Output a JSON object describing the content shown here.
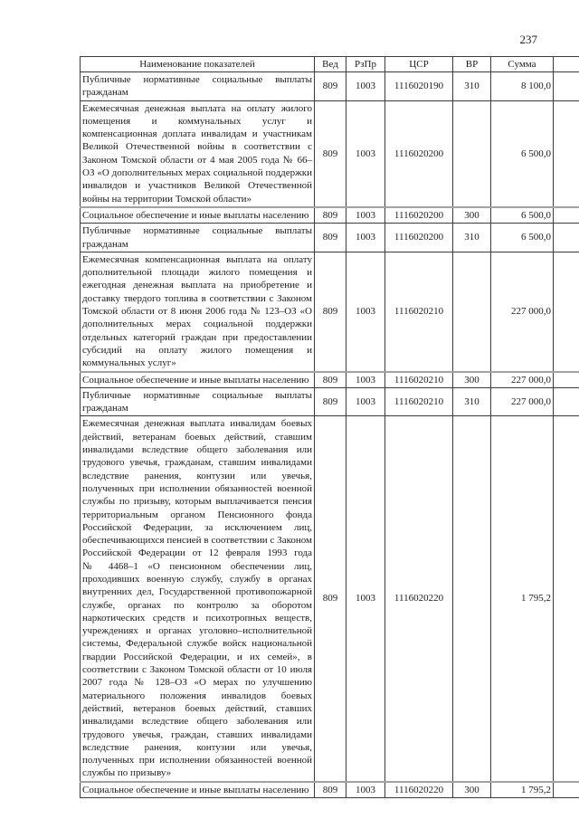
{
  "page_number": "237",
  "table": {
    "headers": [
      "Наименование показателей",
      "Вед",
      "РзПр",
      "ЦСР",
      "ВР",
      "Сумма"
    ],
    "rows": [
      {
        "name": "Публичные нормативные социальные выплаты гражданам",
        "ved": "809",
        "rzpr": "1003",
        "csr": "1116020190",
        "vr": "310",
        "summa": "8 100,0"
      },
      {
        "name": "Ежемесячная денежная выплата на оплату жилого помещения и коммунальных услуг и компенсационная доплата инвалидам и участникам Великой Отечественной войны в соответствии с Законом Томской области от 4 мая 2005 года № 66–ОЗ «О дополнительных мерах социальной поддержки инвалидов и участников Великой Отечественной войны на территории Томской области»",
        "ved": "809",
        "rzpr": "1003",
        "csr": "1116020200",
        "vr": "",
        "summa": "6 500,0"
      },
      {
        "name": "Социальное обеспечение и иные выплаты населению",
        "ved": "809",
        "rzpr": "1003",
        "csr": "1116020200",
        "vr": "300",
        "summa": "6 500,0"
      },
      {
        "name": "Публичные нормативные социальные выплаты гражданам",
        "ved": "809",
        "rzpr": "1003",
        "csr": "1116020200",
        "vr": "310",
        "summa": "6 500,0"
      },
      {
        "name": "Ежемесячная компенсационная выплата на оплату дополнительной площади жилого помещения и ежегодная денежная выплата на приобретение и доставку твердого топлива в соответствии с Законом Томской области от 8 июня 2006 года № 123–ОЗ «О дополнительных мерах социальной поддержки отдельных категорий граждан при предоставлении субсидий на оплату жилого помещения и коммунальных услуг»",
        "ved": "809",
        "rzpr": "1003",
        "csr": "1116020210",
        "vr": "",
        "summa": "227 000,0"
      },
      {
        "name": "Социальное обеспечение и иные выплаты населению",
        "ved": "809",
        "rzpr": "1003",
        "csr": "1116020210",
        "vr": "300",
        "summa": "227 000,0"
      },
      {
        "name": "Публичные нормативные социальные выплаты гражданам",
        "ved": "809",
        "rzpr": "1003",
        "csr": "1116020210",
        "vr": "310",
        "summa": "227 000,0"
      },
      {
        "name": "Ежемесячная денежная выплата инвалидам боевых действий, ветеранам боевых действий, ставшим инвалидами вследствие общего заболевания или трудового увечья, гражданам, ставшим инвалидами вследствие ранения, контузии или увечья, полученных при исполнении обязанностей военной службы по призыву, которым выплачивается пенсия территориальным органом Пенсионного фонда Российской Федерации, за исключением лиц, обеспечивающихся пенсией в соответствии с Законом Российской Федерации от 12 февраля 1993 года № 4468–1 «О пенсионном обеспечении лиц, проходивших военную службу, службу в органах внутренних дел, Государственной противопожарной службе, органах по контролю за оборотом наркотических средств и психотропных веществ, учреждениях и органах уголовно–исполнительной системы, Федеральной службе войск национальной гвардии Российской Федерации, и их семей», в соответствии с Законом Томской области от 10 июля 2007 года № 128–ОЗ «О мерах по улучшению материального положения инвалидов боевых действий, ветеранов боевых действий, ставших инвалидами вследствие общего заболевания или трудового увечья, граждан, ставших инвалидами вследствие ранения, контузии или увечья, полученных при исполнении обязанностей военной службы по призыву»",
        "ved": "809",
        "rzpr": "1003",
        "csr": "1116020220",
        "vr": "",
        "summa": "1 795,2"
      },
      {
        "name": "Социальное обеспечение и иные выплаты населению",
        "ved": "809",
        "rzpr": "1003",
        "csr": "1116020220",
        "vr": "300",
        "summa": "1 795,2"
      }
    ]
  }
}
